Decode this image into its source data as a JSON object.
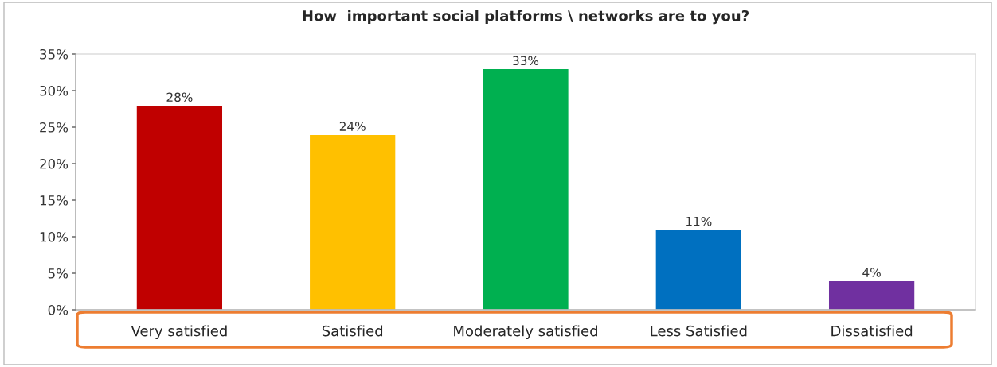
{
  "chart_data": {
    "type": "bar",
    "title": "How  important social platforms \\ networks are to you?",
    "categories": [
      "Very satisfied",
      "Satisfied",
      "Moderately satisfied",
      "Less Satisfied",
      "Dissatisfied"
    ],
    "values": [
      28,
      24,
      33,
      11,
      4
    ],
    "colors": [
      "#c00000",
      "#ffc000",
      "#00b050",
      "#0070c0",
      "#7030a0"
    ],
    "value_labels": [
      "28%",
      "24%",
      "33%",
      "11%",
      "4%"
    ],
    "ylim": [
      0,
      35
    ],
    "yticks": [
      {
        "value": 0,
        "label": "0%"
      },
      {
        "value": 5,
        "label": "5%"
      },
      {
        "value": 10,
        "label": "10%"
      },
      {
        "value": 15,
        "label": "15%"
      },
      {
        "value": 20,
        "label": "20%"
      },
      {
        "value": 25,
        "label": "25%"
      },
      {
        "value": 30,
        "label": "30%"
      },
      {
        "value": 35,
        "label": "35%"
      }
    ],
    "grid": false,
    "legend": false
  }
}
